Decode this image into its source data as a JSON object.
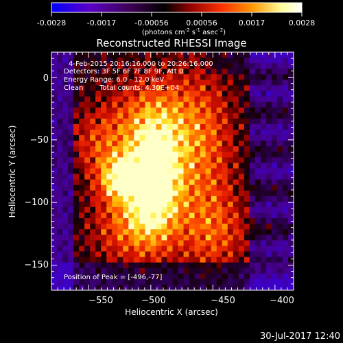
{
  "colorbar": {
    "tick_labels": [
      "-0.0028",
      "-0.0017",
      "-0.00056",
      "0.00056",
      "0.0017",
      "0.0028"
    ],
    "units_text": "(photons cm",
    "units_exp1": "-2",
    "units_mid": " s",
    "units_exp2": "-1",
    "units_mid2": " asec",
    "units_exp3": "-2",
    "units_close": ")",
    "range": [
      -0.0028,
      0.0028
    ],
    "colors": [
      "#0000ff",
      "#5a00c8",
      "#3c0050",
      "#000000",
      "#8c0000",
      "#ff3000",
      "#ff9600",
      "#ffff9a",
      "#ffffff"
    ]
  },
  "plot": {
    "title": "Reconstructed RHESSI Image",
    "x_label": "Heliocentric X (arcsec)",
    "y_label": "Heliocentric Y (arcsec)",
    "x_ticks": [
      "−550",
      "−500",
      "−450",
      "−400"
    ],
    "y_ticks": [
      "0",
      "−50",
      "−100",
      "−150"
    ],
    "x_range": [
      -580,
      -385
    ],
    "y_range": [
      -170,
      20
    ]
  },
  "annotations": {
    "line1": "4-Feb-2015 20:16:16.000 to 20:26:16.000",
    "line2": "Detectors: 3F 5F 6F 7F 8F 9F, Att 0",
    "line3": "Energy Range: 6.0 - 12.0 keV",
    "line4_a": "Clean",
    "line4_b": "Total counts: 4.30E+04",
    "peak": "Position of Peak = [-496,-77]"
  },
  "footer": {
    "timestamp": "30-Jul-2017 12:40"
  }
}
